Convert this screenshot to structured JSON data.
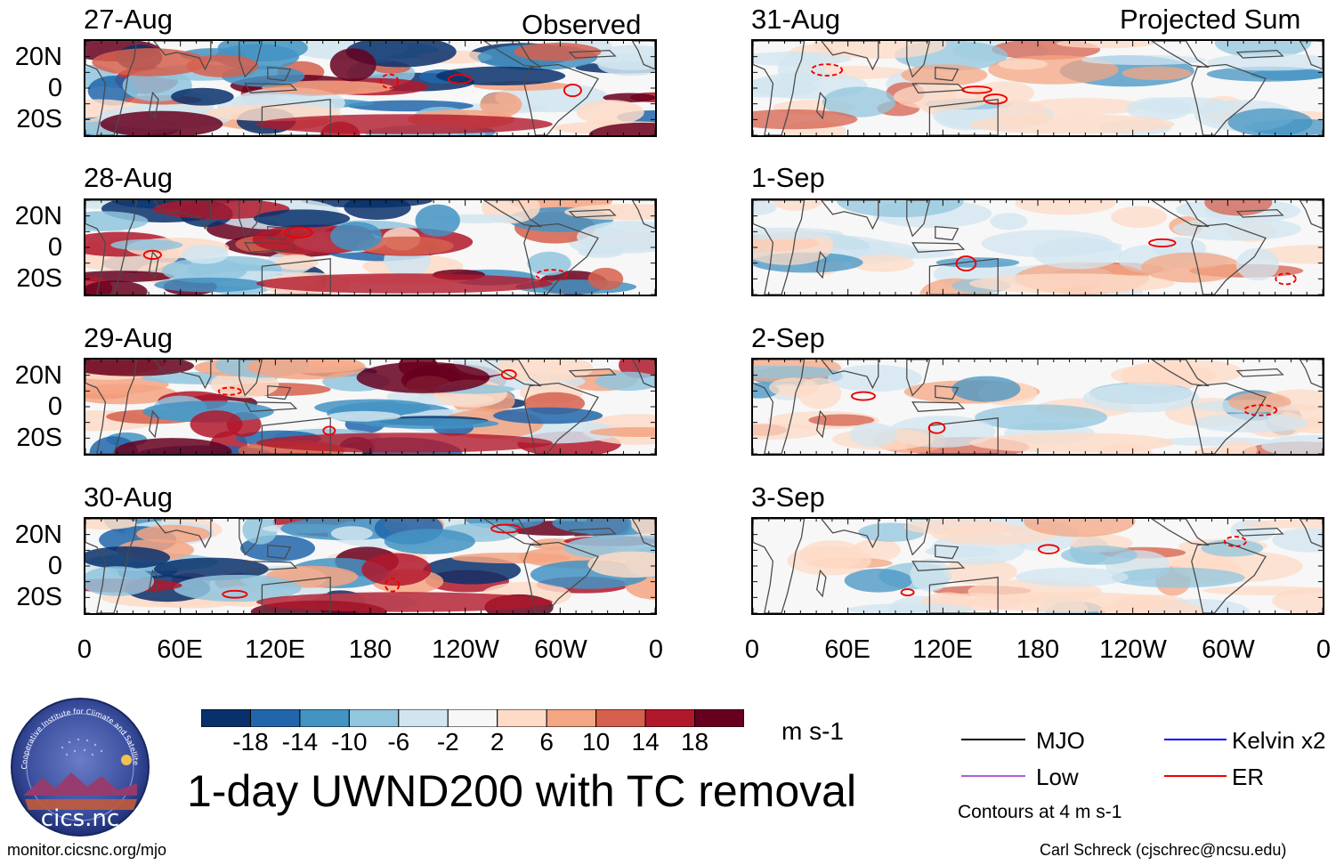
{
  "chart_data": [
    {
      "type": "heatmap",
      "panel_title": "Observed",
      "dates": [
        "27-Aug",
        "28-Aug",
        "29-Aug",
        "30-Aug"
      ],
      "x_ticks": [
        "0",
        "60E",
        "120E",
        "180",
        "120W",
        "60W",
        "0"
      ],
      "y_ticks": [
        "20N",
        "0",
        "20S"
      ],
      "xlim_deg_east": [
        0,
        360
      ],
      "ylim_deg": [
        -30,
        30
      ]
    },
    {
      "type": "heatmap",
      "panel_title": "Projected Sum",
      "dates": [
        "31-Aug",
        "1-Sep",
        "2-Sep",
        "3-Sep"
      ],
      "x_ticks": [
        "0",
        "60E",
        "120E",
        "180",
        "120W",
        "60W",
        "0"
      ],
      "y_ticks": [
        "20N",
        "0",
        "20S"
      ],
      "xlim_deg_east": [
        0,
        360
      ],
      "ylim_deg": [
        -30,
        30
      ]
    }
  ],
  "colorbar": {
    "tick_labels": [
      "-18",
      "-14",
      "-10",
      "-6",
      "-2",
      "2",
      "6",
      "10",
      "14",
      "18"
    ],
    "colors": [
      "#08306b",
      "#2166ac",
      "#4393c3",
      "#92c5de",
      "#d1e5f0",
      "#f7f7f7",
      "#fddbc7",
      "#f4a582",
      "#d6604d",
      "#b2182b",
      "#67001f"
    ],
    "units": "m s-1"
  },
  "main_title": "1-day UWND200 with TC removal",
  "legend": {
    "items": [
      {
        "label": "MJO",
        "color": "#000000"
      },
      {
        "label": "Kelvin x2",
        "color": "#0000ff"
      },
      {
        "label": "Low",
        "color": "#b15fd6"
      },
      {
        "label": "ER",
        "color": "#ee0000"
      }
    ],
    "contour_note": "Contours at 4 m s-1"
  },
  "logo": {
    "name": "Cooperative Institute for Climate and Satellites",
    "short": "cics.nc"
  },
  "footer": {
    "left": "monitor.cicsnc.org/mjo",
    "right": "Carl Schreck (cjschrec@ncsu.edu)"
  }
}
